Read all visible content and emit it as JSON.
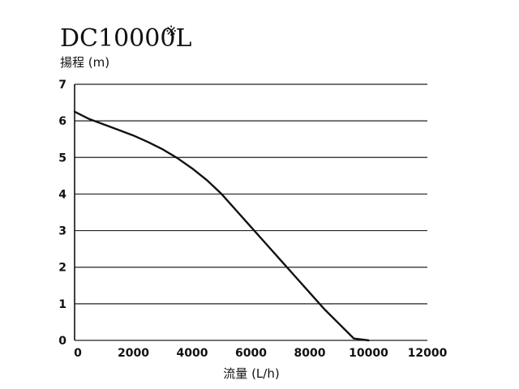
{
  "chart_data": {
    "type": "line",
    "title": "DC10000L",
    "title_mark": "※",
    "ylabel": "揚程 (m)",
    "xlabel": "流量 (L/h)",
    "xlim": [
      0,
      12000
    ],
    "ylim": [
      0,
      7
    ],
    "x_ticks": [
      "0",
      "2000",
      "4000",
      "6000",
      "8000",
      "10000",
      "12000"
    ],
    "y_ticks": [
      "0",
      "1",
      "2",
      "3",
      "4",
      "5",
      "6",
      "7"
    ],
    "grid": "horizontal",
    "series": [
      {
        "x": [
          0,
          500,
          1000,
          1500,
          2000,
          2500,
          3000,
          3500,
          4000,
          4500,
          5000,
          5500,
          6000,
          6500,
          7000,
          7500,
          8000,
          8500,
          9000,
          9500,
          10000
        ],
        "y": [
          6.25,
          6.05,
          5.9,
          5.75,
          5.6,
          5.42,
          5.22,
          4.98,
          4.7,
          4.38,
          4.0,
          3.55,
          3.1,
          2.65,
          2.2,
          1.75,
          1.3,
          0.85,
          0.45,
          0.05,
          0.0
        ],
        "color": "#111111"
      }
    ]
  }
}
